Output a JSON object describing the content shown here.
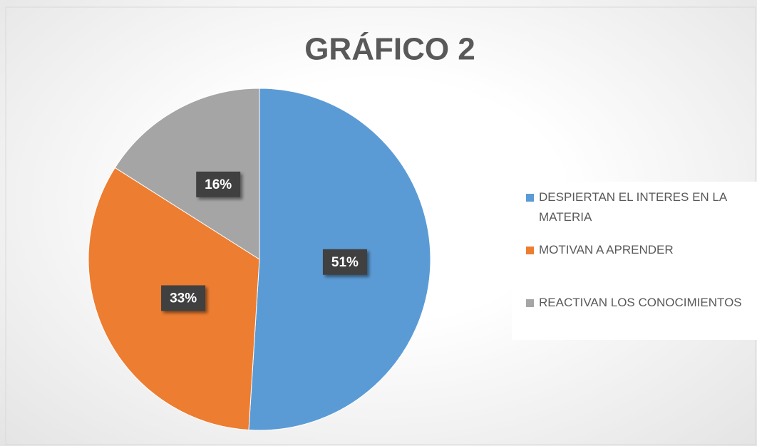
{
  "chart_data": {
    "type": "pie",
    "title": "GRÁFICO 2",
    "categories": [
      "DESPIERTAN EL INTERES EN LA MATERIA",
      "MOTIVAN A APRENDER",
      "REACTIVAN LOS CONOCIMIENTOS"
    ],
    "values": [
      51,
      33,
      16
    ],
    "value_labels": [
      "51%",
      "33%",
      "16%"
    ],
    "colors": [
      "#5b9bd5",
      "#ed7d31",
      "#a5a5a5"
    ],
    "legend": "right"
  }
}
